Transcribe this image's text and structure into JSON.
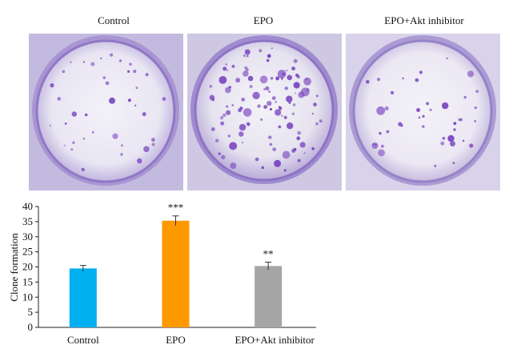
{
  "panels": [
    {
      "label": "Control"
    },
    {
      "label": "EPO"
    },
    {
      "label": "EPO+Akt inhibitor"
    }
  ],
  "colors": {
    "dish_bg": "#c6bedf",
    "dish_center": "#f1eff7",
    "colony": "#7a45c0",
    "bar_control": "#00b0f0",
    "bar_epo": "#ff9900",
    "bar_inhibitor": "#a6a6a6",
    "axis": "#222222"
  },
  "chart_data": {
    "type": "bar",
    "categories": [
      "Control",
      "EPO",
      "EPO+Akt inhibitor"
    ],
    "values": [
      19.5,
      35.3,
      20.3
    ],
    "errors": [
      1.0,
      1.6,
      1.3
    ],
    "significance": [
      "",
      "***",
      "**"
    ],
    "title": "",
    "xlabel": "",
    "ylabel": "Clone formation",
    "ylim": [
      0,
      40
    ],
    "yticks": [
      0,
      5,
      10,
      15,
      20,
      25,
      30,
      35,
      40
    ],
    "grid": false,
    "legend": "none"
  }
}
